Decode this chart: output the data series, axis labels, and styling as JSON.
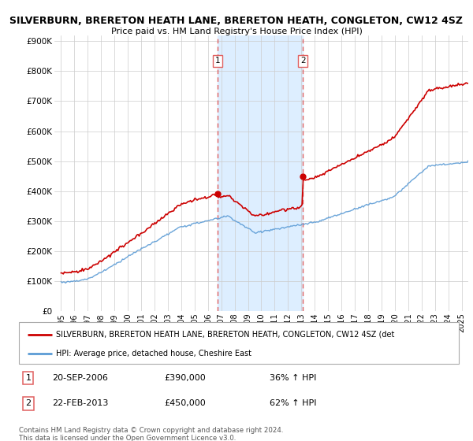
{
  "title1": "SILVERBURN, BRERETON HEATH LANE, BRERETON HEATH, CONGLETON, CW12 4SZ",
  "title2": "Price paid vs. HM Land Registry's House Price Index (HPI)",
  "ylabel_ticks": [
    "£0",
    "£100K",
    "£200K",
    "£300K",
    "£400K",
    "£500K",
    "£600K",
    "£700K",
    "£800K",
    "£900K"
  ],
  "ytick_values": [
    0,
    100000,
    200000,
    300000,
    400000,
    500000,
    600000,
    700000,
    800000,
    900000
  ],
  "ylim": [
    0,
    920000
  ],
  "xlim_start": 1994.5,
  "xlim_end": 2025.5,
  "xticks": [
    1995,
    1996,
    1997,
    1998,
    1999,
    2000,
    2001,
    2002,
    2003,
    2004,
    2005,
    2006,
    2007,
    2008,
    2009,
    2010,
    2011,
    2012,
    2013,
    2014,
    2015,
    2016,
    2017,
    2018,
    2019,
    2020,
    2021,
    2022,
    2023,
    2024,
    2025
  ],
  "sale1_x": 2006.72,
  "sale1_y": 390000,
  "sale1_label": "1",
  "sale2_x": 2013.12,
  "sale2_y": 450000,
  "sale2_label": "2",
  "shade_x1": 2006.72,
  "shade_x2": 2013.12,
  "red_color": "#cc0000",
  "blue_color": "#5b9bd5",
  "shade_color": "#ddeeff",
  "dashed_color": "#e06060",
  "legend_line1": "SILVERBURN, BRERETON HEATH LANE, BRERETON HEATH, CONGLETON, CW12 4SZ (det",
  "legend_line2": "HPI: Average price, detached house, Cheshire East",
  "table_row1_num": "1",
  "table_row1_date": "20-SEP-2006",
  "table_row1_price": "£390,000",
  "table_row1_hpi": "36% ↑ HPI",
  "table_row2_num": "2",
  "table_row2_date": "22-FEB-2013",
  "table_row2_price": "£450,000",
  "table_row2_hpi": "62% ↑ HPI",
  "footnote": "Contains HM Land Registry data © Crown copyright and database right 2024.\nThis data is licensed under the Open Government Licence v3.0.",
  "background_color": "#ffffff",
  "grid_color": "#cccccc"
}
